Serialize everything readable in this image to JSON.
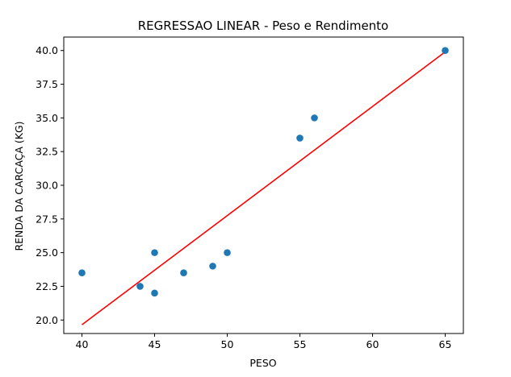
{
  "chart_data": {
    "type": "scatter",
    "title": "REGRESSAO LINEAR - Peso e Rendimento",
    "xlabel": "PESO",
    "ylabel": "RENDA DA CARCAÇA (KG)",
    "xlim": [
      38.75,
      66.25
    ],
    "ylim": [
      19.0,
      41.0
    ],
    "xticks": [
      40,
      45,
      50,
      55,
      60,
      65
    ],
    "yticks": [
      20.0,
      22.5,
      25.0,
      27.5,
      30.0,
      32.5,
      35.0,
      37.5,
      40.0
    ],
    "xtick_labels": [
      "40",
      "45",
      "50",
      "55",
      "60",
      "65"
    ],
    "ytick_labels": [
      "20.0",
      "22.5",
      "25.0",
      "27.5",
      "30.0",
      "32.5",
      "35.0",
      "37.5",
      "40.0"
    ],
    "grid": false,
    "series": [
      {
        "type": "scatter",
        "x": [
          40,
          44,
          45,
          45,
          47,
          49,
          50,
          55,
          56,
          65
        ],
        "y": [
          23.5,
          22.5,
          25.0,
          22.0,
          23.5,
          24.0,
          25.0,
          33.5,
          35.0,
          40.0
        ],
        "color": "#1f77b4"
      },
      {
        "type": "line",
        "x": [
          40,
          65
        ],
        "y": [
          19.65,
          39.9
        ],
        "color": "#ff0000"
      }
    ]
  }
}
